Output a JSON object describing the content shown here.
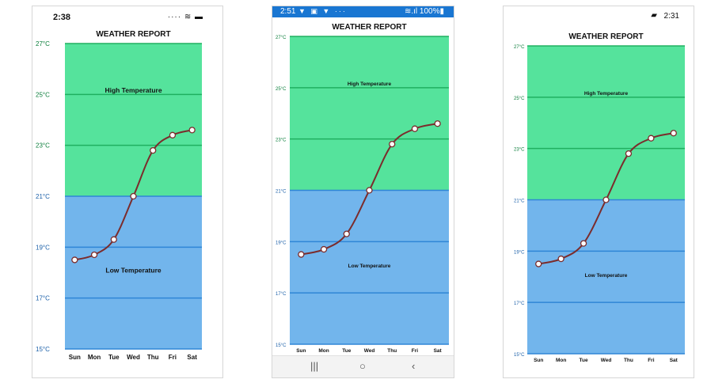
{
  "chart_data": {
    "type": "line",
    "title": "WEATHER REPORT",
    "categories": [
      "Sun",
      "Mon",
      "Tue",
      "Wed",
      "Thu",
      "Fri",
      "Sat"
    ],
    "series": [
      {
        "values": [
          18.5,
          18.7,
          19.3,
          21.0,
          22.8,
          23.4,
          23.6
        ]
      }
    ],
    "ylim": [
      15,
      27
    ],
    "y_ticks": [
      15,
      17,
      19,
      21,
      23,
      25,
      27
    ],
    "y_unit": "°C",
    "bands": [
      {
        "label": "High Temperature",
        "from": 21,
        "to": 27,
        "color": "#55e39c"
      },
      {
        "label": "Low Temperature",
        "from": 15,
        "to": 21,
        "color": "#72b5ec"
      }
    ],
    "grid": true,
    "colors": {
      "line": "#7b2c2c",
      "marker_fill": "#ffffff",
      "high_grid": "#20b060",
      "low_grid": "#2f86d6"
    }
  },
  "devices": {
    "ios": {
      "time": "2:38",
      "icons": "···· ≋ ▬"
    },
    "android": {
      "time": "2:51",
      "notifications": "▼ ▣ ▼ ···",
      "status_right": "≋.ıl 100%▮",
      "nav": {
        "recent": "|||",
        "home": "○",
        "back": "‹"
      }
    },
    "uwp": {
      "time": "2:31",
      "icon": "▰"
    }
  }
}
